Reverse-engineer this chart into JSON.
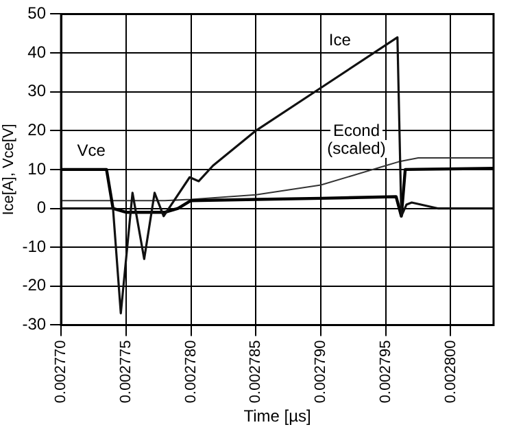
{
  "chart_data": {
    "type": "line",
    "xlabel": "Time [µs]",
    "ylabel": "Ice[A], Vce[V]",
    "xlim": [
      0.00277,
      0.0028033
    ],
    "xticks": [
      {
        "value": 0.00277,
        "label": "0.002770"
      },
      {
        "value": 0.002775,
        "label": "0.002775"
      },
      {
        "value": 0.00278,
        "label": "0.002780"
      },
      {
        "value": 0.002785,
        "label": "0.002785"
      },
      {
        "value": 0.00279,
        "label": "0.002790"
      },
      {
        "value": 0.002795,
        "label": "0.002795"
      },
      {
        "value": 0.0028,
        "label": "0.002800"
      }
    ],
    "ylim": [
      -30,
      50
    ],
    "yticks": [
      -30,
      -20,
      -10,
      0,
      10,
      20,
      30,
      40,
      50
    ],
    "grid": true,
    "legend": false,
    "marker": "none",
    "line_style": "solid",
    "series": [
      {
        "name": "Ice",
        "color": "#111111",
        "x": [
          0.00277,
          0.002774,
          0.0027746,
          0.0027755,
          0.0027764,
          0.0027772,
          0.0027779,
          0.0027785,
          0.0027799,
          0.0027806,
          0.0027817,
          0.002785,
          0.00279,
          0.0027959,
          0.0027962,
          0.0027966,
          0.002797,
          0.002799,
          0.0028033
        ],
        "values": [
          0,
          0,
          -27,
          4,
          -13,
          4,
          -2,
          1,
          8,
          7,
          11,
          20,
          31,
          44,
          -2,
          1,
          1.5,
          0,
          0
        ]
      },
      {
        "name": "Vce",
        "color": "#000000",
        "x": [
          0.00277,
          0.0027735,
          0.002774,
          0.002775,
          0.002778,
          0.002779,
          0.00278,
          0.002785,
          0.00279,
          0.0027958,
          0.0027962,
          0.0027965,
          0.0028033
        ],
        "values": [
          10,
          10,
          0,
          -1,
          -1,
          0,
          2,
          2.3,
          2.6,
          3,
          -2,
          10,
          10.3
        ]
      },
      {
        "name": "Econd (scaled)",
        "color": "#333333",
        "x": [
          0.00277,
          0.002778,
          0.00278,
          0.002785,
          0.00279,
          0.002795,
          0.002796,
          0.0027975,
          0.0028033
        ],
        "values": [
          2,
          2,
          2.3,
          3.5,
          6,
          11,
          12,
          13,
          13
        ]
      }
    ]
  }
}
